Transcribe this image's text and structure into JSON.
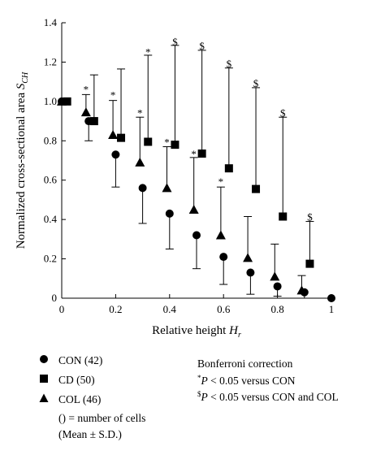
{
  "chart_data": {
    "type": "scatter",
    "xlabel_text": "Relative height ",
    "xlabel_var": "H",
    "xlabel_sub": "r",
    "ylabel_text": "Normalized cross-sectional area ",
    "ylabel_var": "S",
    "ylabel_sub": "CH",
    "xlim": [
      0,
      1
    ],
    "ylim": [
      0,
      1.4
    ],
    "xticks": [
      0,
      0.2,
      0.4,
      0.6,
      0.8,
      1
    ],
    "xtick_labels": [
      "0",
      "0.2",
      "0.4",
      "0.6",
      "0.8",
      "1"
    ],
    "yticks": [
      0,
      0.2,
      0.4,
      0.6,
      0.8,
      1.0,
      1.2,
      1.4
    ],
    "ytick_labels": [
      "0",
      "0.2",
      "0.4",
      "0.6",
      "0.8",
      "1.0",
      "1.2",
      "1.4"
    ],
    "series": [
      {
        "name": "CON (42)",
        "marker": "circle",
        "x": [
          0,
          0.1,
          0.2,
          0.3,
          0.4,
          0.5,
          0.6,
          0.7,
          0.8,
          0.9,
          1.0
        ],
        "y": [
          1.0,
          0.9,
          0.73,
          0.56,
          0.43,
          0.32,
          0.21,
          0.13,
          0.06,
          0.03,
          0.0
        ],
        "err": [
          0,
          0.1,
          0.165,
          0.18,
          0.18,
          0.17,
          0.14,
          0.11,
          0.05,
          0.03,
          0.0
        ],
        "err_dir": "down"
      },
      {
        "name": "CD (50)",
        "marker": "square",
        "x": [
          0.02,
          0.12,
          0.22,
          0.32,
          0.42,
          0.52,
          0.62,
          0.72,
          0.82,
          0.92
        ],
        "y": [
          1.0,
          0.9,
          0.815,
          0.795,
          0.78,
          0.735,
          0.66,
          0.555,
          0.415,
          0.175
        ],
        "err": [
          0,
          0.235,
          0.35,
          0.44,
          0.505,
          0.525,
          0.51,
          0.515,
          0.505,
          0.215
        ],
        "err_dir": "up"
      },
      {
        "name": "COL (46)",
        "marker": "triangle",
        "x": [
          0,
          0.09,
          0.19,
          0.29,
          0.39,
          0.49,
          0.59,
          0.69,
          0.79,
          0.89
        ],
        "y": [
          1.0,
          0.945,
          0.83,
          0.69,
          0.56,
          0.45,
          0.32,
          0.205,
          0.11,
          0.04
        ],
        "err": [
          0,
          0.09,
          0.175,
          0.23,
          0.21,
          0.265,
          0.245,
          0.21,
          0.165,
          0.075
        ],
        "err_dir": "up"
      }
    ],
    "annotations": [
      {
        "text": "*",
        "x": 0.09,
        "y": 1.06
      },
      {
        "text": "*",
        "x": 0.19,
        "y": 1.03
      },
      {
        "text": "*",
        "x": 0.29,
        "y": 0.94
      },
      {
        "text": "*",
        "x": 0.39,
        "y": 0.79
      },
      {
        "text": "*",
        "x": 0.49,
        "y": 0.73
      },
      {
        "text": "*",
        "x": 0.59,
        "y": 0.59
      },
      {
        "text": "*",
        "x": 0.32,
        "y": 1.25
      },
      {
        "text": "$",
        "x": 0.42,
        "y": 1.3
      },
      {
        "text": "$",
        "x": 0.52,
        "y": 1.28
      },
      {
        "text": "$",
        "x": 0.62,
        "y": 1.19
      },
      {
        "text": "$",
        "x": 0.72,
        "y": 1.09
      },
      {
        "text": "$",
        "x": 0.82,
        "y": 0.94
      },
      {
        "text": "$",
        "x": 0.92,
        "y": 0.41
      }
    ]
  },
  "legend": {
    "items": [
      "CON (42)",
      "CD (50)",
      "COL (46)"
    ],
    "cells_note": "() = number of cells",
    "mean_note": "(Mean ± S.D.)"
  },
  "stats_note": {
    "title": "Bonferroni correction",
    "line1_mark": "*",
    "line1_var": "P",
    "line1_text": " < 0.05 versus CON",
    "line2_mark": "$",
    "line2_var": "P",
    "line2_text": " < 0.05 versus CON and COL"
  }
}
